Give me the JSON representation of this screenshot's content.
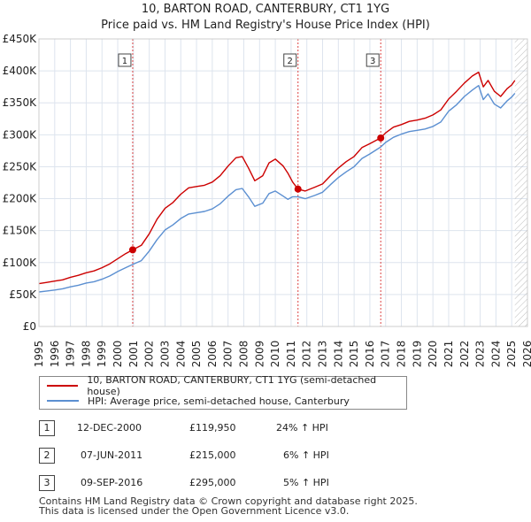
{
  "title_line1": "10, BARTON ROAD, CANTERBURY, CT1 1YG",
  "title_line2": "Price paid vs. HM Land Registry's House Price Index (HPI)",
  "colors": {
    "price_line": "#cc0000",
    "hpi_line": "#5b8fd1",
    "future_hatch": "#cccccc",
    "grid": "#dde4ee",
    "plot_bg": "#ffffff"
  },
  "legend": {
    "price_label": "10, BARTON ROAD, CANTERBURY, CT1 1YG (semi-detached house)",
    "hpi_label": "HPI: Average price, semi-detached house, Canterbury"
  },
  "sales": [
    {
      "num": "1",
      "date": "12-DEC-2000",
      "price": "£119,950",
      "hpi_change": "24% ↑ HPI"
    },
    {
      "num": "2",
      "date": "07-JUN-2011",
      "price": "£215,000",
      "hpi_change": "6% ↑ HPI"
    },
    {
      "num": "3",
      "date": "09-SEP-2016",
      "price": "£295,000",
      "hpi_change": "5% ↑ HPI"
    }
  ],
  "footer": {
    "line1": "Contains HM Land Registry data © Crown copyright and database right 2025.",
    "line2": "This data is licensed under the Open Government Licence v3.0."
  },
  "chart_data": {
    "type": "line",
    "title": "10, BARTON ROAD, CANTERBURY, CT1 1YG — Price paid vs. HM Land Registry's House Price Index (HPI)",
    "xlabel": "",
    "ylabel": "",
    "xlim": [
      1995,
      2026
    ],
    "ylim": [
      0,
      450000
    ],
    "data_end": 2025.2,
    "x_ticks": [
      1995,
      1996,
      1997,
      1998,
      1999,
      2000,
      2001,
      2002,
      2003,
      2004,
      2005,
      2006,
      2007,
      2008,
      2009,
      2010,
      2011,
      2012,
      2013,
      2014,
      2015,
      2016,
      2017,
      2018,
      2019,
      2020,
      2021,
      2022,
      2023,
      2024,
      2025,
      2026
    ],
    "y_ticks": [
      {
        "value": 0,
        "label": "£0"
      },
      {
        "value": 50000,
        "label": "£50K"
      },
      {
        "value": 100000,
        "label": "£100K"
      },
      {
        "value": 150000,
        "label": "£150K"
      },
      {
        "value": 200000,
        "label": "£200K"
      },
      {
        "value": 250000,
        "label": "£250K"
      },
      {
        "value": 300000,
        "label": "£300K"
      },
      {
        "value": 350000,
        "label": "£350K"
      },
      {
        "value": 400000,
        "label": "£400K"
      },
      {
        "value": 450000,
        "label": "£450K"
      }
    ],
    "series": [
      {
        "name": "10, BARTON ROAD, CANTERBURY, CT1 1YG (semi-detached house)",
        "x": [
          1995,
          1995.5,
          1996,
          1996.5,
          1997,
          1997.5,
          1998,
          1998.5,
          1999,
          1999.5,
          2000,
          2000.5,
          2000.95,
          2001.5,
          2002,
          2002.5,
          2003,
          2003.5,
          2004,
          2004.5,
          2005,
          2005.5,
          2006,
          2006.5,
          2007,
          2007.5,
          2007.9,
          2008.3,
          2008.7,
          2009.2,
          2009.6,
          2010,
          2010.5,
          2010.8,
          2011.1,
          2011.44,
          2011.9,
          2012.5,
          2013,
          2013.5,
          2014,
          2014.5,
          2015,
          2015.5,
          2016,
          2016.69,
          2017,
          2017.5,
          2018,
          2018.5,
          2019,
          2019.5,
          2020,
          2020.5,
          2021,
          2021.5,
          2022,
          2022.5,
          2022.9,
          2023.2,
          2023.5,
          2023.9,
          2024.3,
          2024.7,
          2025.0,
          2025.2
        ],
        "values": [
          67000,
          69000,
          71000,
          73000,
          77000,
          80000,
          84000,
          87000,
          92000,
          98000,
          106000,
          114000,
          119950,
          127000,
          145000,
          168000,
          185000,
          194000,
          207000,
          217000,
          219000,
          221000,
          226000,
          236000,
          251000,
          264000,
          266000,
          248000,
          228000,
          236000,
          256000,
          262000,
          251000,
          240000,
          226000,
          215000,
          212000,
          218000,
          223000,
          236000,
          248000,
          258000,
          266000,
          280000,
          286000,
          295000,
          303000,
          312000,
          316000,
          321000,
          323000,
          326000,
          331000,
          339000,
          356000,
          368000,
          381000,
          392000,
          398000,
          375000,
          385000,
          368000,
          360000,
          372000,
          378000,
          385000
        ]
      },
      {
        "name": "HPI: Average price, semi-detached house, Canterbury",
        "x": [
          1995,
          1995.5,
          1996,
          1996.5,
          1997,
          1997.5,
          1998,
          1998.5,
          1999,
          1999.5,
          2000,
          2000.5,
          2000.95,
          2001.5,
          2002,
          2002.5,
          2003,
          2003.5,
          2004,
          2004.5,
          2005,
          2005.5,
          2006,
          2006.5,
          2007,
          2007.5,
          2007.9,
          2008.3,
          2008.7,
          2009.2,
          2009.6,
          2010,
          2010.5,
          2010.8,
          2011.1,
          2011.44,
          2011.9,
          2012.5,
          2013,
          2013.5,
          2014,
          2014.5,
          2015,
          2015.5,
          2016,
          2016.69,
          2017,
          2017.5,
          2018,
          2018.5,
          2019,
          2019.5,
          2020,
          2020.5,
          2021,
          2021.5,
          2022,
          2022.5,
          2022.9,
          2023.2,
          2023.5,
          2023.9,
          2024.3,
          2024.7,
          2025.0,
          2025.2
        ],
        "values": [
          54000,
          55500,
          57000,
          59000,
          62000,
          64500,
          68000,
          70000,
          74000,
          79000,
          86000,
          92000,
          97000,
          103000,
          118000,
          136000,
          151000,
          159000,
          169000,
          176000,
          178000,
          180000,
          184000,
          192000,
          204000,
          214000,
          216000,
          203000,
          188000,
          193000,
          208000,
          212000,
          204000,
          199000,
          203000,
          203000,
          200000,
          205000,
          210000,
          222000,
          233000,
          242000,
          250000,
          263000,
          270000,
          281000,
          288000,
          296000,
          301000,
          305000,
          307000,
          309000,
          313000,
          320000,
          337000,
          347000,
          360000,
          370000,
          377000,
          355000,
          364000,
          348000,
          342000,
          353000,
          359000,
          365000
        ]
      }
    ],
    "annotations": [
      {
        "label": "1",
        "x": 2000.95,
        "y": 119950
      },
      {
        "label": "2",
        "x": 2011.44,
        "y": 215000
      },
      {
        "label": "3",
        "x": 2016.69,
        "y": 295000
      }
    ]
  }
}
